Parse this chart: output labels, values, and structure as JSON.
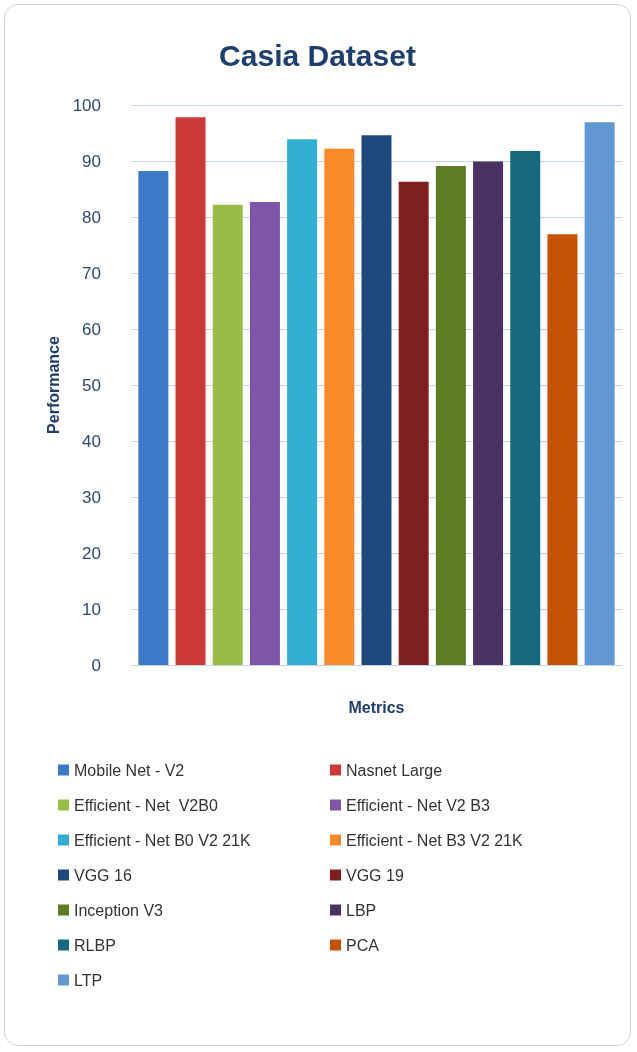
{
  "chart_data": {
    "type": "bar",
    "title": "Casia Dataset",
    "xlabel": "Metrics",
    "ylabel": "Performance",
    "categories": [
      null
    ],
    "series": [
      {
        "name": "Mobile Net - V2",
        "color": "#3d78c9",
        "values": [
          88.2
        ]
      },
      {
        "name": "Nasnet Large",
        "color": "#cc3a38",
        "values": [
          97.8
        ]
      },
      {
        "name": "Efficient - Net  V2B0",
        "color": "#9bbb47",
        "values": [
          82.2
        ]
      },
      {
        "name": "Efficient - Net V2 B3",
        "color": "#7e55a8",
        "values": [
          82.7
        ]
      },
      {
        "name": "Efficient - Net B0 V2 21K",
        "color": "#31afd3",
        "values": [
          93.9
        ]
      },
      {
        "name": "Efficient - Net B3 V2 21K",
        "color": "#f68b27",
        "values": [
          92.2
        ]
      },
      {
        "name": "VGG 16",
        "color": "#1f497d",
        "values": [
          94.6
        ]
      },
      {
        "name": "VGG 19",
        "color": "#7f1f1f",
        "values": [
          86.3
        ]
      },
      {
        "name": "Inception V3",
        "color": "#5e7c24",
        "values": [
          89.1
        ]
      },
      {
        "name": "LBP",
        "color": "#493262",
        "values": [
          89.9
        ]
      },
      {
        "name": "RLBP",
        "color": "#17697e",
        "values": [
          91.8
        ]
      },
      {
        "name": "PCA",
        "color": "#c55205",
        "values": [
          76.9
        ]
      },
      {
        "name": "LTP",
        "color": "#6197d2",
        "values": [
          96.9
        ]
      }
    ],
    "ylim": [
      0,
      100
    ],
    "yticks": [
      0,
      10,
      20,
      30,
      40,
      50,
      60,
      70,
      80,
      90,
      100
    ],
    "grid": "y",
    "legend": "bottom"
  }
}
